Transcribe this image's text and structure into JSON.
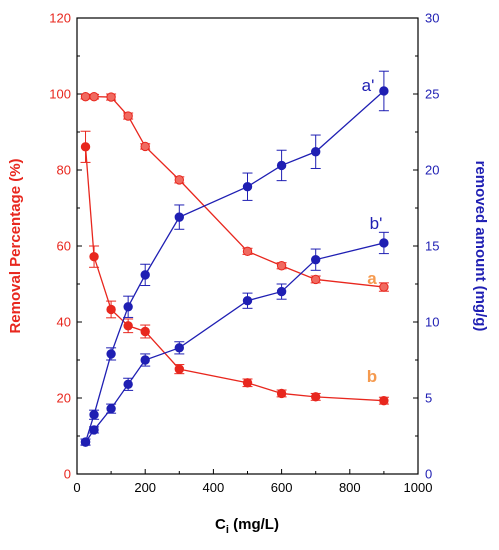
{
  "chart_data": {
    "type": "scatter",
    "xlabel_main": "C",
    "xlabel_sub": "i",
    "xlabel_unit": " (mg/L)",
    "xlim": [
      0,
      1000
    ],
    "x_ticks": [
      "0",
      "200",
      "400",
      "600",
      "800",
      "1000"
    ],
    "y_left": {
      "label": "Removal Percentage (%)",
      "lim": [
        0,
        120
      ],
      "ticks": [
        "0",
        "20",
        "40",
        "60",
        "80",
        "100",
        "120"
      ],
      "color": "#e8271e"
    },
    "y_right": {
      "label": "removed amount (mg/g)",
      "lim": [
        0,
        30
      ],
      "ticks": [
        "0",
        "5",
        "10",
        "15",
        "20",
        "25",
        "30"
      ],
      "color": "#1f1fb3"
    },
    "grid": false,
    "series": [
      {
        "label": "a",
        "axis": "left",
        "color": "#e8271e",
        "marker_color": "#f06a60",
        "label_color": "#f59a4f",
        "x": [
          25,
          50,
          100,
          150,
          200,
          300,
          500,
          600,
          700,
          900
        ],
        "y": [
          99.3,
          99.3,
          99.2,
          94.2,
          86.2,
          77.4,
          58.6,
          54.8,
          51.2,
          49.2
        ],
        "err": [
          0.6,
          0.6,
          0.8,
          0.8,
          0.7,
          0.8,
          0.8,
          0.8,
          0.9,
          1.1
        ]
      },
      {
        "label": "b",
        "axis": "left",
        "color": "#e8271e",
        "marker_color": "#e8271e",
        "label_color": "#f59a4f",
        "x": [
          25,
          50,
          100,
          150,
          200,
          300,
          500,
          600,
          700,
          900
        ],
        "y": [
          86.1,
          57.2,
          43.3,
          39.0,
          37.5,
          27.6,
          24.0,
          21.2,
          20.3,
          19.3
        ],
        "err": [
          4.1,
          2.8,
          2.2,
          1.8,
          1.7,
          1.2,
          1.0,
          0.9,
          0.9,
          0.9
        ]
      },
      {
        "label": "a'",
        "axis": "right",
        "color": "#1f1fb3",
        "marker_color": "#1f1fb3",
        "label_color": "#1f1fb3",
        "x": [
          25,
          50,
          100,
          150,
          200,
          300,
          500,
          600,
          700,
          900
        ],
        "y": [
          2.1,
          3.9,
          7.9,
          11.0,
          13.1,
          16.9,
          18.9,
          20.3,
          21.2,
          25.2
        ],
        "err": [
          0.2,
          0.3,
          0.4,
          0.7,
          0.7,
          0.8,
          0.9,
          1.0,
          1.1,
          1.3
        ]
      },
      {
        "label": "b'",
        "axis": "right",
        "color": "#1f1fb3",
        "marker_color": "#1f1fb3",
        "label_color": "#1f1fb3",
        "x": [
          25,
          50,
          100,
          150,
          200,
          300,
          500,
          600,
          700,
          900
        ],
        "y": [
          2.1,
          2.9,
          4.3,
          5.9,
          7.5,
          8.3,
          11.4,
          12.0,
          14.1,
          15.2
        ],
        "err": [
          0.2,
          0.2,
          0.3,
          0.4,
          0.4,
          0.4,
          0.5,
          0.5,
          0.7,
          0.7
        ]
      }
    ]
  }
}
